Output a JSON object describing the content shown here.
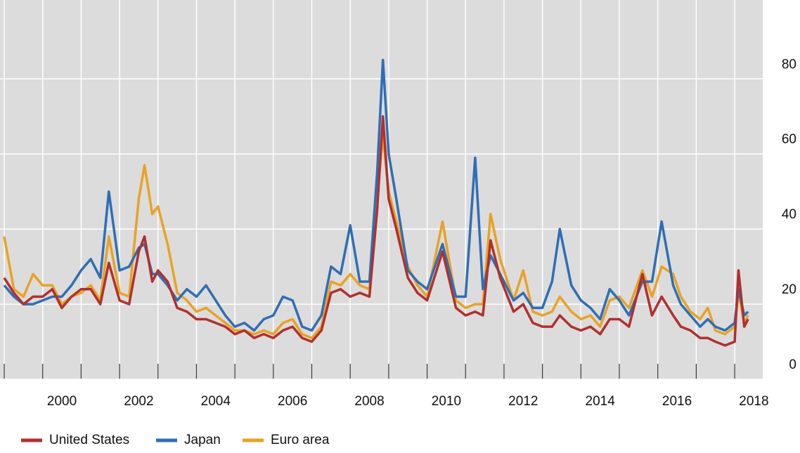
{
  "chart_data": {
    "type": "line",
    "x": [
      1999.0,
      1999.25,
      1999.5,
      1999.75,
      2000.0,
      2000.25,
      2000.5,
      2000.75,
      2001.0,
      2001.25,
      2001.5,
      2001.72,
      2002.0,
      2002.25,
      2002.5,
      2002.65,
      2002.85,
      2003.0,
      2003.25,
      2003.5,
      2003.75,
      2004.0,
      2004.25,
      2004.5,
      2004.75,
      2005.0,
      2005.25,
      2005.5,
      2005.75,
      2006.0,
      2006.25,
      2006.5,
      2006.75,
      2007.0,
      2007.25,
      2007.5,
      2007.75,
      2008.0,
      2008.25,
      2008.5,
      2008.7,
      2008.85,
      2009.0,
      2009.2,
      2009.5,
      2009.75,
      2010.0,
      2010.4,
      2010.75,
      2011.0,
      2011.25,
      2011.45,
      2011.65,
      2011.9,
      2012.25,
      2012.5,
      2012.75,
      2013.0,
      2013.25,
      2013.45,
      2013.75,
      2014.0,
      2014.25,
      2014.5,
      2014.75,
      2015.0,
      2015.25,
      2015.6,
      2015.85,
      2016.1,
      2016.4,
      2016.6,
      2016.85,
      2017.1,
      2017.3,
      2017.5,
      2017.75,
      2018.0,
      2018.1,
      2018.25,
      2018.35
    ],
    "series": [
      {
        "name": "United States",
        "color": "#b0302e",
        "values": [
          27,
          23,
          20,
          22,
          22,
          24,
          19,
          22,
          24,
          24,
          20,
          31,
          21,
          20,
          34,
          38,
          26,
          29,
          26,
          19,
          18,
          16,
          16,
          15,
          14,
          12,
          13,
          11,
          12,
          11,
          13,
          14,
          11,
          10,
          13,
          23,
          24,
          22,
          23,
          22,
          45,
          70,
          48,
          40,
          27,
          23,
          21,
          34,
          19,
          17,
          18,
          17,
          37,
          27,
          18,
          20,
          15,
          14,
          14,
          17,
          14,
          13,
          14,
          12,
          16,
          16,
          14,
          28,
          17,
          22,
          17,
          14,
          13,
          11,
          11,
          10,
          9,
          10,
          29,
          14,
          16
        ]
      },
      {
        "name": "Japan",
        "color": "#2f6eb5",
        "values": [
          25,
          22,
          20,
          20,
          21,
          22,
          22,
          25,
          29,
          32,
          27,
          50,
          29,
          30,
          35,
          36,
          28,
          28,
          25,
          21,
          24,
          22,
          25,
          21,
          17,
          14,
          15,
          13,
          16,
          17,
          22,
          21,
          14,
          13,
          17,
          30,
          28,
          41,
          26,
          26,
          55,
          85,
          60,
          48,
          29,
          26,
          24,
          36,
          22,
          22,
          59,
          24,
          33,
          28,
          21,
          23,
          19,
          19,
          26,
          40,
          25,
          21,
          19,
          16,
          24,
          21,
          17,
          26,
          26,
          42,
          25,
          20,
          17,
          14,
          16,
          14,
          13,
          15,
          24,
          17,
          18
        ]
      },
      {
        "name": "Euro area",
        "color": "#e9a225",
        "values": [
          38,
          24,
          22,
          28,
          25,
          25,
          20,
          22,
          23,
          25,
          21,
          38,
          23,
          22,
          48,
          57,
          44,
          46,
          36,
          23,
          21,
          18,
          19,
          17,
          15,
          13,
          13,
          12,
          13,
          12,
          15,
          16,
          12,
          11,
          14,
          26,
          25,
          28,
          25,
          24,
          48,
          65,
          50,
          42,
          30,
          25,
          22,
          42,
          21,
          19,
          20,
          20,
          44,
          32,
          21,
          29,
          18,
          17,
          18,
          22,
          18,
          16,
          17,
          14,
          21,
          22,
          19,
          29,
          22,
          30,
          28,
          22,
          18,
          16,
          19,
          13,
          12,
          14,
          23,
          15,
          17
        ]
      }
    ],
    "xlim": [
      1998.89,
      2018.73
    ],
    "xticks": [
      {
        "value": 2000.5,
        "label": "2000"
      },
      {
        "value": 2002.5,
        "label": "2002"
      },
      {
        "value": 2004.5,
        "label": "2004"
      },
      {
        "value": 2006.5,
        "label": "2006"
      },
      {
        "value": 2008.5,
        "label": "2008"
      },
      {
        "value": 2010.5,
        "label": "2010"
      },
      {
        "value": 2012.5,
        "label": "2012"
      },
      {
        "value": 2014.5,
        "label": "2014"
      },
      {
        "value": 2016.5,
        "label": "2016"
      },
      {
        "value": 2018.5,
        "label": "2018"
      }
    ],
    "x_gridlines": [
      1999,
      2000,
      2001,
      2002,
      2003,
      2004,
      2005,
      2006,
      2007,
      2008,
      2009,
      2010,
      2011,
      2012,
      2013,
      2014,
      2015,
      2016,
      2017,
      2018
    ],
    "ylim": [
      0,
      101
    ],
    "yticks": [
      0,
      20,
      40,
      60,
      80
    ],
    "grid": true
  }
}
